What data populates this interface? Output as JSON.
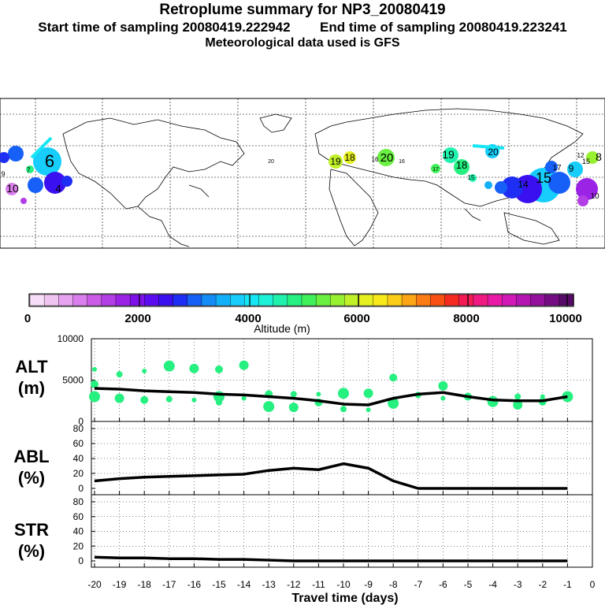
{
  "header": {
    "title": "Retroplume summary for NP3_20080419",
    "subtitle_start": "Start time of sampling 20080419.222942",
    "subtitle_end": "End time of sampling 20080419.223241",
    "met_line": "Meteorological data used is GFS"
  },
  "colorbar": {
    "ticks": [
      "0",
      "2000",
      "4000",
      "6000",
      "8000",
      "10000"
    ],
    "label": "Altitude (m)",
    "colors": [
      "#f7ddf7",
      "#f0c4f0",
      "#e7a3ef",
      "#db7fee",
      "#cc5ce8",
      "#b23ee6",
      "#9a23e5",
      "#7e10ea",
      "#5c0df0",
      "#3b10f0",
      "#1f2ef4",
      "#1660f7",
      "#138cf8",
      "#13b0fa",
      "#16cdfb",
      "#16e6f4",
      "#1cf2d8",
      "#20f2ae",
      "#25f080",
      "#3ff05a",
      "#6af040",
      "#97f030",
      "#c0f028",
      "#e6f020",
      "#f8e91a",
      "#fbcc18",
      "#fca516",
      "#fb7b14",
      "#f95014",
      "#f52a20",
      "#f31a55",
      "#f01a82",
      "#e91aa6",
      "#d219b8",
      "#b415b2",
      "#93119d",
      "#740d84",
      "#580a68"
    ]
  },
  "chart_data": [
    {
      "type": "line",
      "panel": "ALT",
      "ylabel_line1": "ALT",
      "ylabel_line2": "(m)",
      "ylim": [
        0,
        10000
      ],
      "ytick_labels": [
        "10000",
        "5000",
        "0"
      ],
      "x": [
        -20,
        -19,
        -18,
        -17,
        -16,
        -15,
        -14,
        -13,
        -12,
        -11,
        -10,
        -9,
        -8,
        -7,
        -6,
        -5,
        -4,
        -3,
        -2,
        -1
      ],
      "values": [
        4000,
        3900,
        3700,
        3600,
        3500,
        3300,
        3200,
        3000,
        2800,
        2500,
        2100,
        2000,
        2800,
        3300,
        3500,
        3000,
        2600,
        2500,
        2500,
        3000
      ]
    },
    {
      "type": "line",
      "panel": "ABL",
      "ylabel_line1": "ABL",
      "ylabel_line2": "(%)",
      "ylim": [
        0,
        90
      ],
      "ytick_labels": [
        "80",
        "60",
        "40",
        "20",
        "0"
      ],
      "x": [
        -20,
        -19,
        -18,
        -17,
        -16,
        -15,
        -14,
        -13,
        -12,
        -11,
        -10,
        -9,
        -8,
        -7,
        -6,
        -5,
        -4,
        -3,
        -2,
        -1
      ],
      "values": [
        10,
        13,
        15,
        16,
        17,
        18,
        19,
        24,
        27,
        25,
        33,
        27,
        10,
        0,
        0,
        0,
        0,
        0,
        0,
        0
      ]
    },
    {
      "type": "line",
      "panel": "STR",
      "ylabel_line1": "STR",
      "ylabel_line2": "(%)",
      "ylim": [
        0,
        90
      ],
      "ytick_labels": [
        "80",
        "60",
        "40",
        "20",
        "0"
      ],
      "x": [
        -20,
        -19,
        -18,
        -17,
        -16,
        -15,
        -14,
        -13,
        -12,
        -11,
        -10,
        -9,
        -8,
        -7,
        -6,
        -5,
        -4,
        -3,
        -2,
        -1
      ],
      "values": [
        5,
        4,
        4,
        3,
        3,
        2,
        2,
        1,
        0,
        0,
        0,
        0,
        0,
        0,
        0,
        0,
        0,
        0,
        0,
        0
      ],
      "xlabel": "Travel time (days)",
      "xtick_labels": [
        "-20",
        "-19",
        "-18",
        "-17",
        "-16",
        "-15",
        "-14",
        "-13",
        "-12",
        "-11",
        "-10",
        "-9",
        "-8",
        "-7",
        "-6",
        "-5",
        "-4",
        "-3",
        "-2",
        "-1",
        "0"
      ]
    }
  ],
  "map_labels": [
    {
      "text": "6",
      "c": "#16cdfb"
    },
    {
      "text": "7",
      "c": "#25f080"
    },
    {
      "text": "10",
      "c": "#db7fee"
    },
    {
      "text": "4",
      "c": "#1f2ef4"
    },
    {
      "text": "9",
      "c": "#b23ee6"
    },
    {
      "text": "20",
      "c": "#e6f020"
    },
    {
      "text": "19",
      "c": "#c0f028"
    },
    {
      "text": "18",
      "c": "#e6f020"
    },
    {
      "text": "16",
      "c": "#f8e91a"
    },
    {
      "text": "20",
      "c": "#6af040"
    },
    {
      "text": "16",
      "c": "#e6f020"
    },
    {
      "text": "17",
      "c": "#6af040"
    },
    {
      "text": "19",
      "c": "#20f2ae"
    },
    {
      "text": "18",
      "c": "#25f080"
    },
    {
      "text": "15",
      "c": "#3ff05a"
    },
    {
      "text": "20",
      "c": "#16cdfb"
    },
    {
      "text": "14",
      "c": "#3b10f0"
    },
    {
      "text": "15",
      "c": "#1660f7"
    },
    {
      "text": "17",
      "c": "#1660f7"
    },
    {
      "text": "9",
      "c": "#16cdfb"
    },
    {
      "text": "8",
      "c": "#97f030"
    },
    {
      "text": "10",
      "c": "#db7fee"
    },
    {
      "text": "12",
      "c": "#13b0fa"
    },
    {
      "text": "15",
      "c": "#1660f7"
    }
  ],
  "alt_dots_series": [
    {
      "x": -20,
      "y": 6300
    },
    {
      "x": -20,
      "y": 4500
    },
    {
      "x": -20,
      "y": 3000
    },
    {
      "x": -19,
      "y": 5700
    },
    {
      "x": -19,
      "y": 2800
    },
    {
      "x": -18,
      "y": 6100
    },
    {
      "x": -18,
      "y": 2600
    },
    {
      "x": -17,
      "y": 6700
    },
    {
      "x": -17,
      "y": 2700
    },
    {
      "x": -16,
      "y": 6400
    },
    {
      "x": -16,
      "y": 2600
    },
    {
      "x": -15,
      "y": 6300
    },
    {
      "x": -15,
      "y": 3000
    },
    {
      "x": -15,
      "y": 2300
    },
    {
      "x": -14,
      "y": 6800
    },
    {
      "x": -14,
      "y": 2800
    },
    {
      "x": -13,
      "y": 3300
    },
    {
      "x": -13,
      "y": 1800
    },
    {
      "x": -12,
      "y": 3300
    },
    {
      "x": -12,
      "y": 1700
    },
    {
      "x": -11,
      "y": 3300
    },
    {
      "x": -11,
      "y": 2300
    },
    {
      "x": -10,
      "y": 3400
    },
    {
      "x": -10,
      "y": 1500
    },
    {
      "x": -9,
      "y": 3400
    },
    {
      "x": -9,
      "y": 1400
    },
    {
      "x": -8,
      "y": 5300
    },
    {
      "x": -8,
      "y": 2200
    },
    {
      "x": -7,
      "y": 3200
    },
    {
      "x": -6,
      "y": 4300
    },
    {
      "x": -6,
      "y": 2800
    },
    {
      "x": -5,
      "y": 3000
    },
    {
      "x": -4,
      "y": 2400
    },
    {
      "x": -3,
      "y": 3000
    },
    {
      "x": -3,
      "y": 2000
    },
    {
      "x": -2,
      "y": 3000
    },
    {
      "x": -2,
      "y": 2400
    },
    {
      "x": -1,
      "y": 3000
    }
  ]
}
